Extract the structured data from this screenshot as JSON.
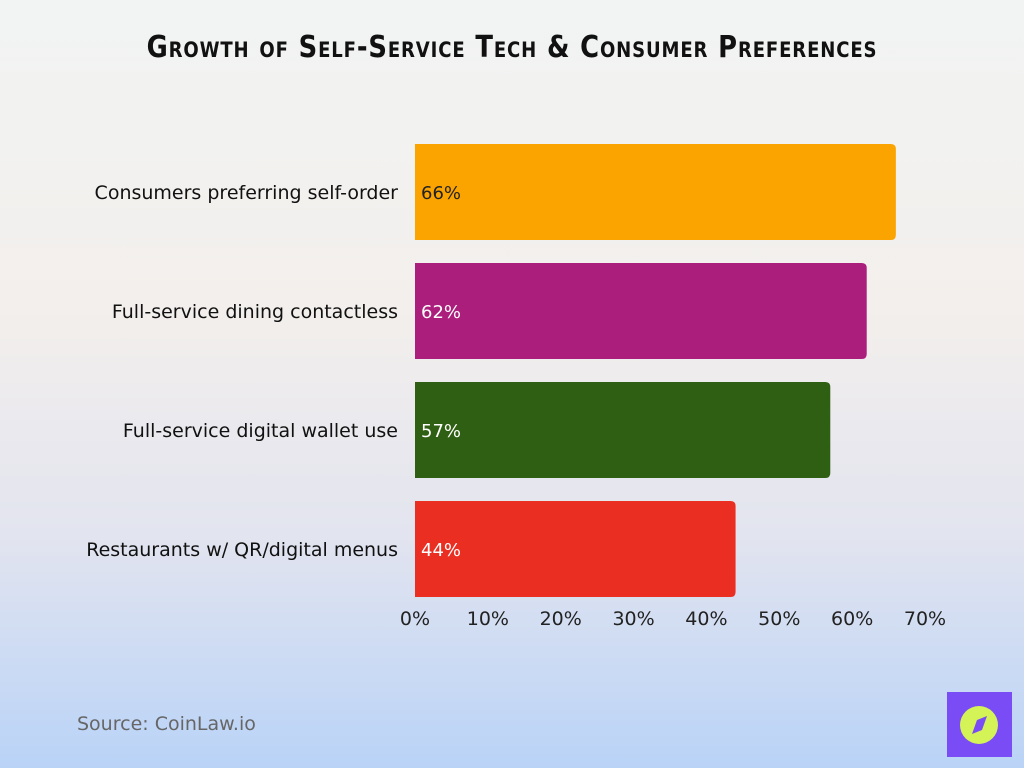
{
  "chart_data": {
    "type": "bar",
    "orientation": "horizontal",
    "title": "Growth of Self-Service Tech & Consumer Preferences",
    "categories": [
      "Consumers preferring self-order",
      "Full-service dining contactless",
      "Full-service digital wallet use",
      "Restaurants w/ QR/digital menus"
    ],
    "values": [
      66,
      62,
      57,
      44
    ],
    "data_labels": [
      "66%",
      "62%",
      "57%",
      "44%"
    ],
    "colors": [
      "#fba400",
      "#ab1e7b",
      "#2f5f12",
      "#ea2f22"
    ],
    "xticks": [
      "0%",
      "10%",
      "20%",
      "30%",
      "40%",
      "50%",
      "60%",
      "70%"
    ],
    "xlim": [
      0,
      70
    ],
    "grid": false,
    "legend": "none"
  },
  "source": "Source: CoinLaw.io",
  "logo": {
    "icon": "compass-icon",
    "bg": "#7a4cf6",
    "fg": "#d4f356"
  }
}
